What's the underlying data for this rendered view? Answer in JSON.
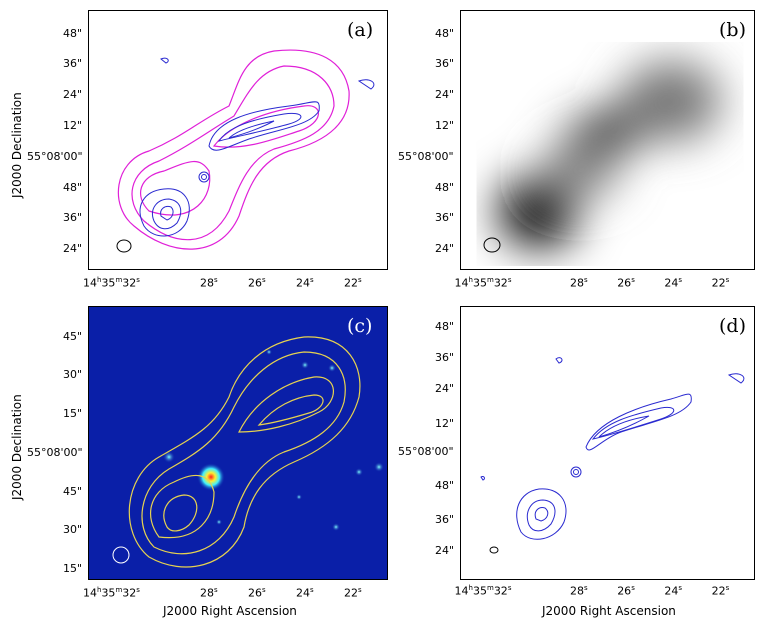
{
  "panels": {
    "a": {
      "label": "(a)"
    },
    "b": {
      "label": "(b)"
    },
    "c": {
      "label": "(c)"
    },
    "d": {
      "label": "(d)"
    }
  },
  "axes": {
    "ylabel": "J2000 Declination",
    "xlabel": "J2000 Right Ascension",
    "dec_ticks_ab": [
      "48\"",
      "36\"",
      "24\"",
      "12\"",
      "55°08'00\"",
      "48\"",
      "36\"",
      "24\""
    ],
    "dec_ticks_c": [
      "45\"",
      "30\"",
      "15\"",
      "55°08'00\"",
      "45\"",
      "30\"",
      "15\""
    ],
    "dec_ticks_d": [
      "48\"",
      "36\"",
      "24\"",
      "12\"",
      "55°08'00\"",
      "48\"",
      "36\"",
      "24\""
    ],
    "ra_ticks": [
      "14h35m32s",
      "28s",
      "26s",
      "24s",
      "22s"
    ]
  },
  "colors": {
    "contour_blue": "#2a2ad0",
    "contour_magenta": "#e020d8",
    "contour_yellow": "#e6d250",
    "sky_blue": "#0a1fa8"
  }
}
